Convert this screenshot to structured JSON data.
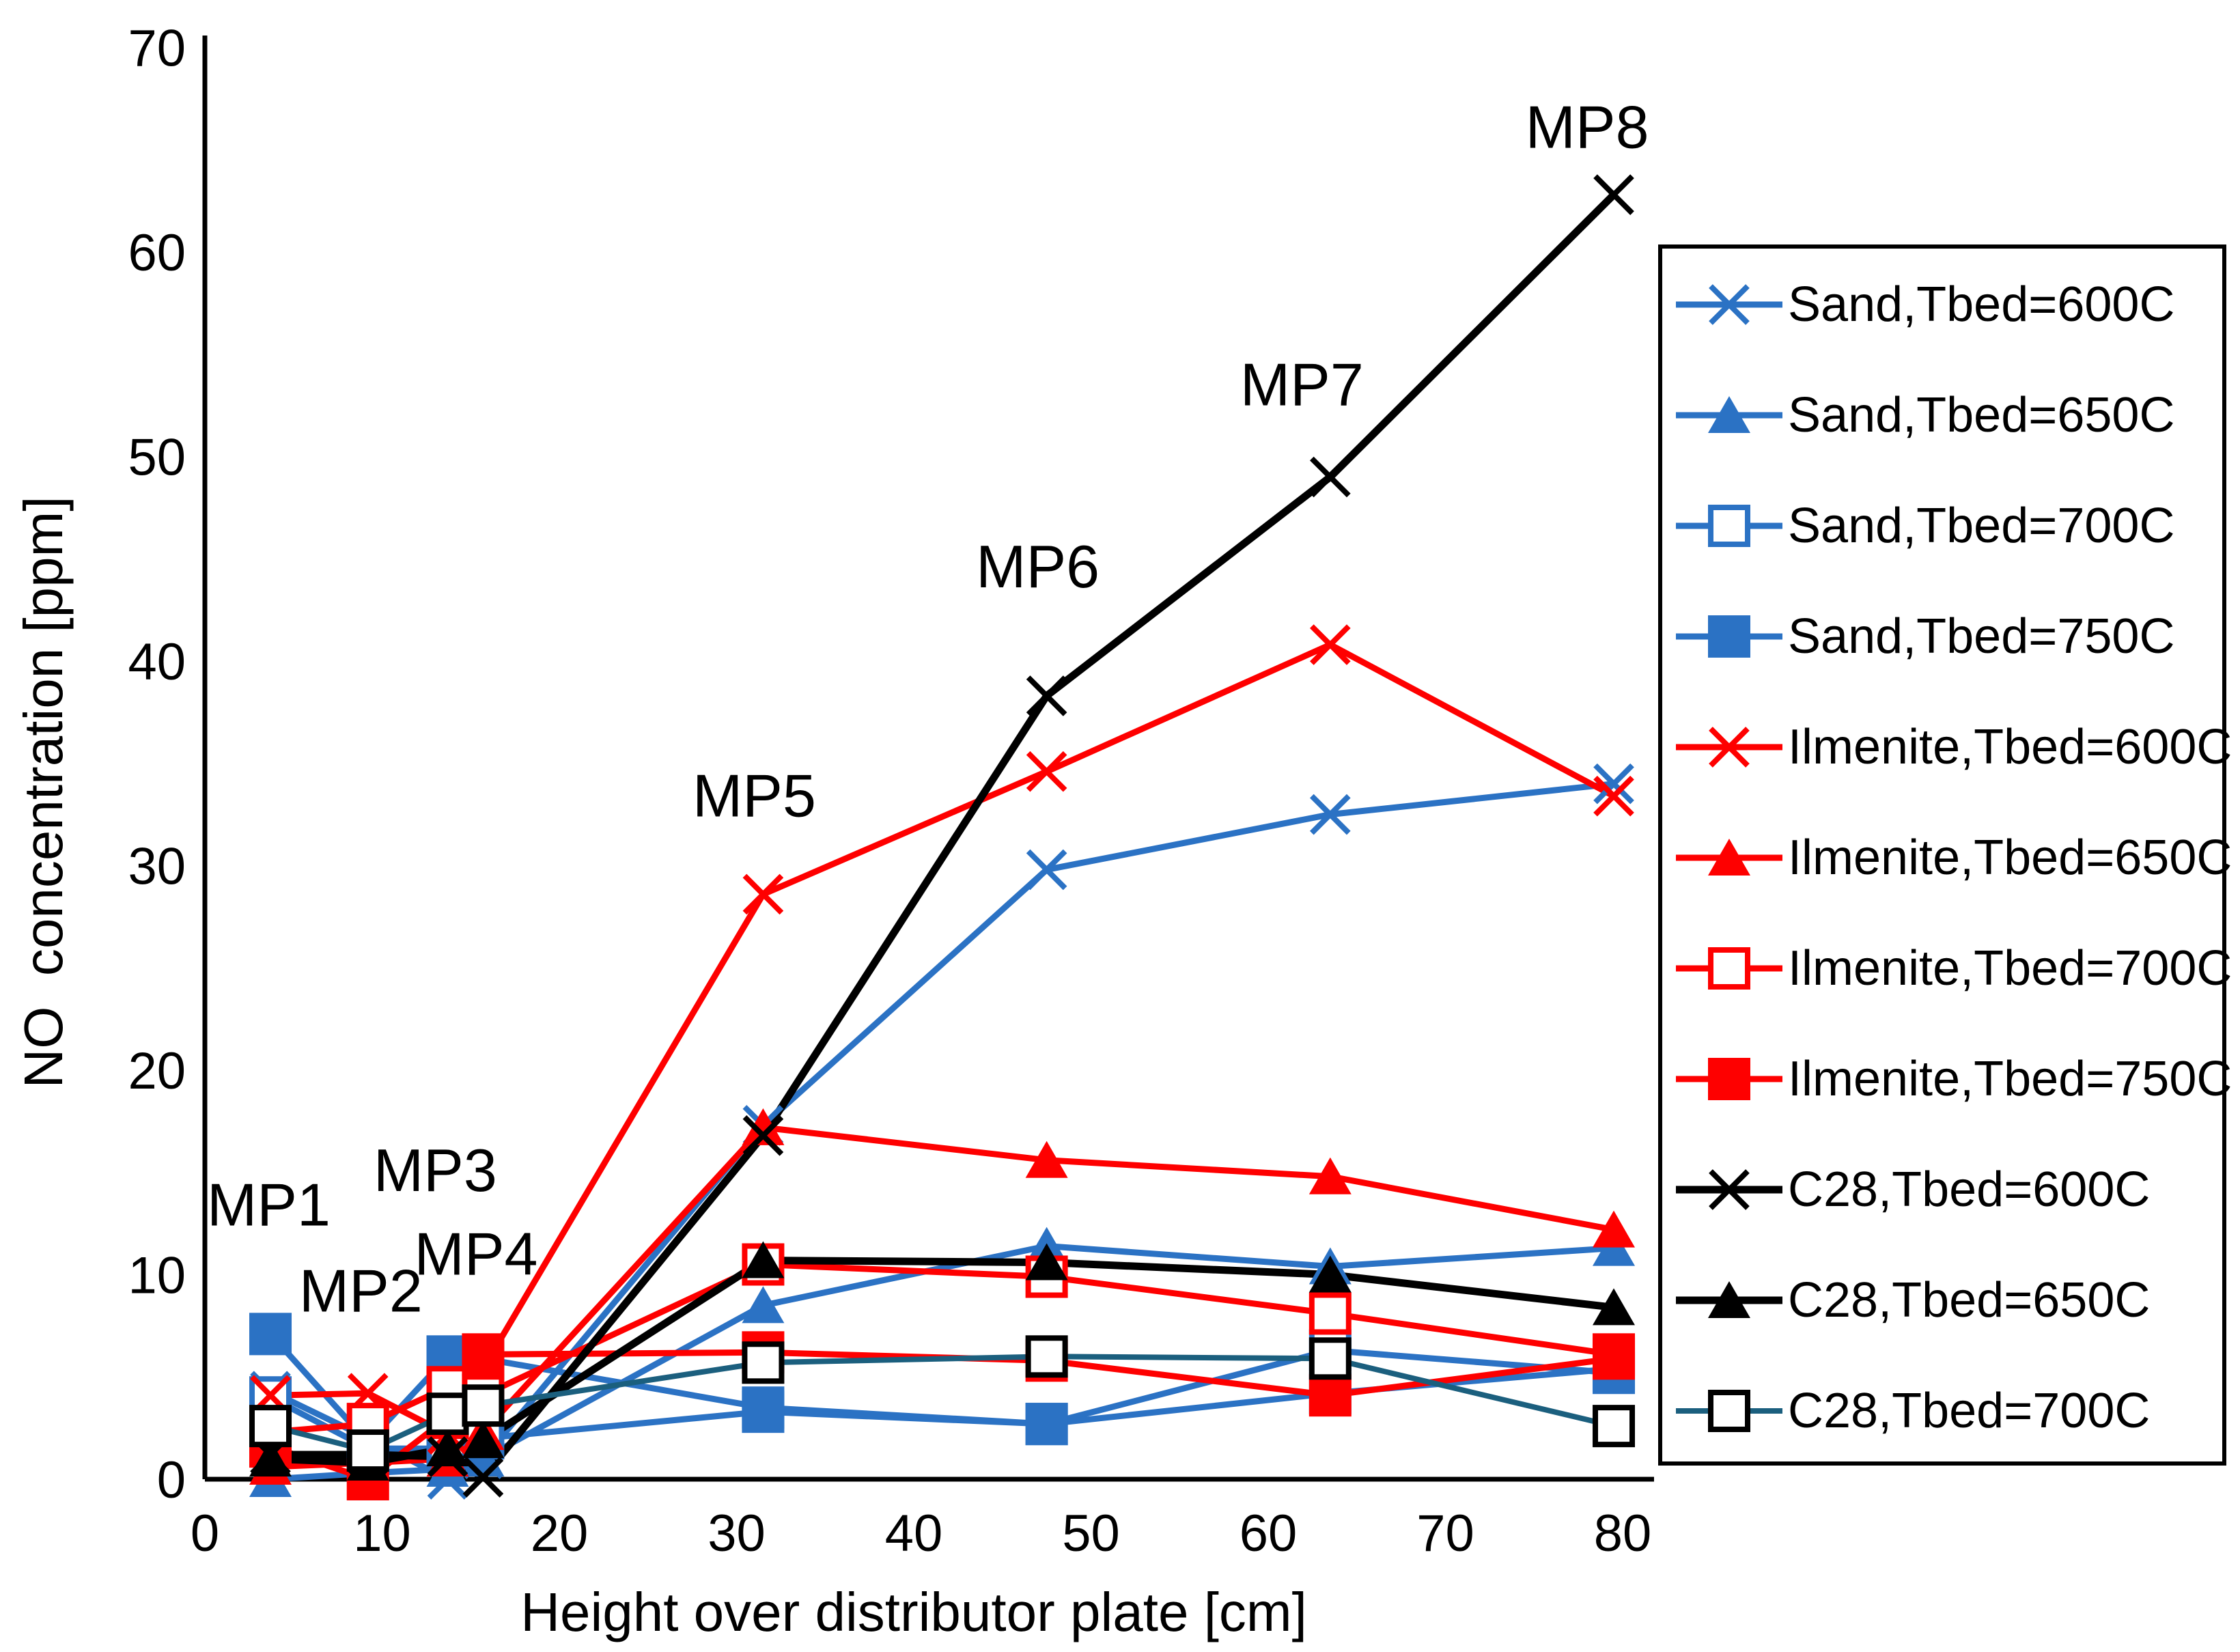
{
  "chart_data": {
    "type": "line",
    "title": "",
    "xlabel": "Height over distributor plate [cm]",
    "ylabel": "NO  concentration [ppm]",
    "xlim": [
      0,
      80
    ],
    "ylim": [
      0,
      70
    ],
    "x_ticks": [
      0,
      10,
      20,
      30,
      40,
      50,
      60,
      70,
      80
    ],
    "y_ticks": [
      0,
      10,
      20,
      30,
      40,
      50,
      60,
      70
    ],
    "grid": false,
    "legend_position": "right",
    "colors": {
      "sand_blue": "#2b72c4",
      "ilmenite_red": "#fe0000",
      "c28_black": "#000000",
      "c28_teal": "#1b5f7e"
    },
    "x": [
      3.7,
      9.2,
      13.7,
      15.7,
      31.5,
      47.5,
      63.5,
      79.5
    ],
    "series": [
      {
        "name": "Sand,Tbed=600C",
        "line_color": "#2b72c4",
        "marker_color": "#2b72c4",
        "marker": "xcross",
        "line_width": 9,
        "values": [
          4.3,
          2.0,
          0.0,
          1.0,
          17.3,
          29.8,
          32.5,
          34.0
        ]
      },
      {
        "name": "Sand,Tbed=650C",
        "line_color": "#2b72c4",
        "marker_color": "#2b72c4",
        "marker": "triangle",
        "line_width": 9,
        "values": [
          0.0,
          0.3,
          0.5,
          1.0,
          8.5,
          11.4,
          10.4,
          11.3
        ]
      },
      {
        "name": "Sand,Tbed=700C",
        "line_color": "#2b72c4",
        "marker_color": "#2b72c4",
        "marker": "square-open",
        "line_width": 9,
        "values": [
          4.0,
          1.5,
          1.5,
          2.0,
          3.3,
          2.7,
          6.3,
          5.2
        ]
      },
      {
        "name": "Sand,Tbed=750C",
        "line_color": "#2b72c4",
        "marker_color": "#2b72c4",
        "marker": "square",
        "line_width": 9,
        "values": [
          7.1,
          1.8,
          6.0,
          5.9,
          3.5,
          2.7,
          4.2,
          5.4
        ]
      },
      {
        "name": "Ilmenite,Tbed=600C",
        "line_color": "#fe0000",
        "marker_color": "#fe0000",
        "marker": "xcross",
        "line_width": 9,
        "values": [
          4.1,
          4.2,
          2.2,
          5.4,
          28.6,
          34.6,
          40.8,
          33.4
        ]
      },
      {
        "name": "Ilmenite,Tbed=650C",
        "line_color": "#fe0000",
        "marker_color": "#fe0000",
        "marker": "triangle",
        "line_width": 9,
        "values": [
          0.6,
          0.8,
          1.0,
          2.3,
          17.2,
          15.6,
          14.8,
          12.2
        ]
      },
      {
        "name": "Ilmenite,Tbed=700C",
        "line_color": "#fe0000",
        "marker_color": "#fe0000",
        "marker": "square-open",
        "line_width": 9,
        "values": [
          2.3,
          2.7,
          4.5,
          4.1,
          10.5,
          9.9,
          8.1,
          6.1
        ]
      },
      {
        "name": "Ilmenite,Tbed=750C",
        "line_color": "#fe0000",
        "marker_color": "#fe0000",
        "marker": "square",
        "line_width": 9,
        "values": [
          1.6,
          0.0,
          3.0,
          6.1,
          6.2,
          5.8,
          4.1,
          5.9
        ]
      },
      {
        "name": "C28,Tbed=600C",
        "line_color": "#000000",
        "marker_color": "#000000",
        "marker": "xcross",
        "line_width": 11,
        "values": [
          1.2,
          1.2,
          1.1,
          0.1,
          16.8,
          38.3,
          49.0,
          62.8
        ]
      },
      {
        "name": "C28,Tbed=650C",
        "line_color": "#000000",
        "marker_color": "#000000",
        "marker": "triangle",
        "line_width": 11,
        "values": [
          1.0,
          0.8,
          1.5,
          1.9,
          10.7,
          10.6,
          10.0,
          8.4
        ]
      },
      {
        "name": "C28,Tbed=700C",
        "line_color": "#1b5f7e",
        "marker_color": "#000000",
        "marker": "square-open",
        "line_width": 8,
        "values": [
          2.6,
          1.4,
          3.2,
          3.6,
          5.7,
          6.0,
          5.9,
          2.6
        ]
      }
    ],
    "annotations": [
      {
        "label": "MP1",
        "x": 3.6,
        "y": 13.4
      },
      {
        "label": "MP2",
        "x": 8.8,
        "y": 9.2
      },
      {
        "label": "MP3",
        "x": 13.0,
        "y": 15.1
      },
      {
        "label": "MP4",
        "x": 15.3,
        "y": 11.0
      },
      {
        "label": "MP5",
        "x": 31.0,
        "y": 33.4
      },
      {
        "label": "MP6",
        "x": 47.0,
        "y": 44.6
      },
      {
        "label": "MP7",
        "x": 61.9,
        "y": 53.5
      },
      {
        "label": "MP8",
        "x": 78.0,
        "y": 66.1
      }
    ]
  }
}
